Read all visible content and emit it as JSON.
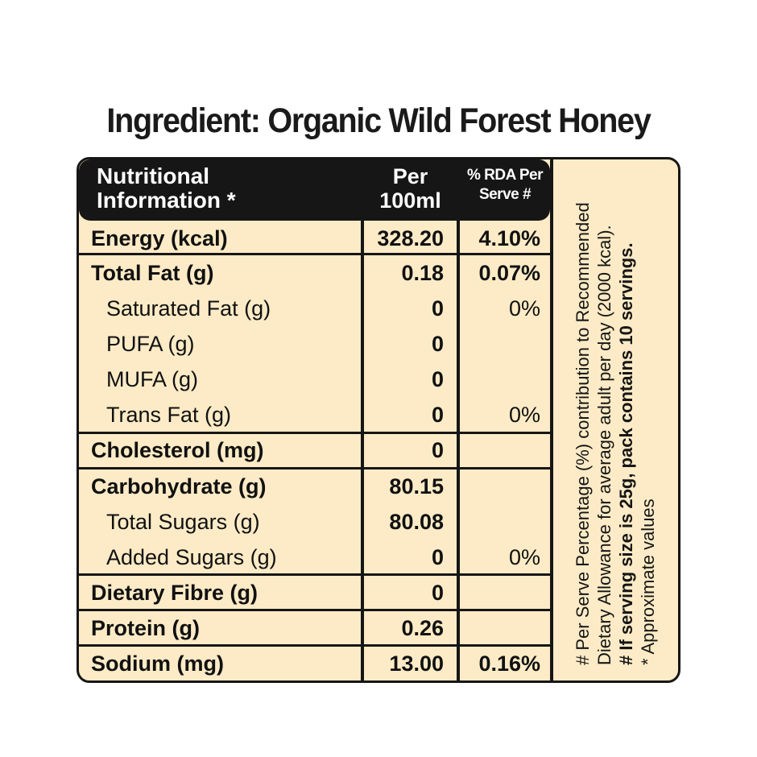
{
  "title": "Ingredient: Organic Wild Forest Honey",
  "header": {
    "nutrition_line1": "Nutritional",
    "nutrition_line2": "Information *",
    "per_line1": "Per",
    "per_line2": "100ml",
    "rda_line1": "% RDA Per",
    "rda_line2": "Serve #"
  },
  "rows": [
    {
      "name": "Energy (kcal)",
      "value": "328.20",
      "rda": "4.10%"
    },
    {
      "name": "Total Fat (g)",
      "value": "0.18",
      "rda": "0.07%"
    },
    {
      "name": "Saturated Fat (g)",
      "value": "0",
      "rda": "0%"
    },
    {
      "name": "PUFA (g)",
      "value": "0",
      "rda": ""
    },
    {
      "name": "MUFA (g)",
      "value": "0",
      "rda": ""
    },
    {
      "name": "Trans Fat (g)",
      "value": "0",
      "rda": "0%"
    },
    {
      "name": "Cholesterol (mg)",
      "value": "0",
      "rda": ""
    },
    {
      "name": "Carbohydrate (g)",
      "value": "80.15",
      "rda": ""
    },
    {
      "name": "Total Sugars (g)",
      "value": "80.08",
      "rda": ""
    },
    {
      "name": "Added Sugars (g)",
      "value": "0",
      "rda": "0%"
    },
    {
      "name": "Dietary Fibre (g)",
      "value": "0",
      "rda": ""
    },
    {
      "name": "Protein (g)",
      "value": "0.26",
      "rda": ""
    },
    {
      "name": "Sodium (mg)",
      "value": "13.00",
      "rda": "0.16%"
    }
  ],
  "footnote": {
    "line1": "# Per Serve Percentage (%) contribution to Recommended",
    "line2": "Dietary Allowance for average adult per day (2000 kcal).",
    "line3": "# If serving size is 25g, pack contains 10 servings.",
    "line4": "* Approximate values"
  },
  "colors": {
    "panel": "#fcebc6",
    "dark": "#161616"
  }
}
